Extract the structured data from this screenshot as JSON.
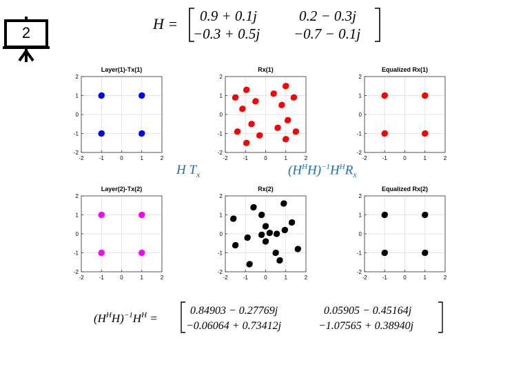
{
  "slide": {
    "number": "2"
  },
  "equations": {
    "H": {
      "lhs": "H =",
      "r1c1": "0.9 + 0.1j",
      "r1c2": "0.2 − 0.3j",
      "r2c1": "−0.3 + 0.5j",
      "r2c2": "−0.7 − 0.1j"
    },
    "inv": {
      "lhs": "(H",
      "lhs_sup1": "H",
      "lhs_mid": "H)",
      "lhs_sup2": "−1",
      "lhs_end": "H",
      "lhs_sup3": "H",
      "lhs_eq": " =",
      "r1c1": "0.84903 − 0.27769j",
      "r1c2": "0.05905 − 0.45164j",
      "r2c1": "−0.06064 + 0.73412j",
      "r2c2": "−1.07565 + 0.38940j"
    },
    "htx": {
      "h": "H T",
      "sub": "x"
    },
    "hinv": {
      "a": "(H",
      "s1": "H",
      "b": "H)",
      "s2": "−1",
      "c": "H",
      "s3": "H",
      "d": "R",
      "sub": "x"
    }
  },
  "chart_data": [
    {
      "type": "scatter",
      "title": "Layer(1)-Tx(1)",
      "xlim": [
        -2,
        2
      ],
      "ylim": [
        -2,
        2
      ],
      "xticks": [
        -2,
        -1,
        0,
        1,
        2
      ],
      "yticks": [
        -2,
        -1,
        0,
        1,
        2
      ],
      "grid": true,
      "color": "#0000ff",
      "points": [
        [
          -1,
          1
        ],
        [
          1,
          1
        ],
        [
          -1,
          -1
        ],
        [
          1,
          -1
        ]
      ]
    },
    {
      "type": "scatter",
      "title": "Rx(1)",
      "xlim": [
        -2,
        2
      ],
      "ylim": [
        -2,
        2
      ],
      "xticks": [
        -2,
        -1,
        0,
        1,
        2
      ],
      "yticks": [
        -2,
        -1,
        0,
        1,
        2
      ],
      "grid": true,
      "color": "#ff0000",
      "points": [
        [
          -1.5,
          0.9
        ],
        [
          -0.95,
          1.3
        ],
        [
          -1.15,
          0.3
        ],
        [
          -0.5,
          0.7
        ],
        [
          0.4,
          1.1
        ],
        [
          1.0,
          1.5
        ],
        [
          0.8,
          0.5
        ],
        [
          1.4,
          0.9
        ],
        [
          -1.4,
          -0.9
        ],
        [
          -0.7,
          -0.5
        ],
        [
          -0.3,
          -1.1
        ],
        [
          -0.95,
          -1.5
        ],
        [
          0.6,
          -0.7
        ],
        [
          1.0,
          -1.3
        ],
        [
          1.1,
          -0.3
        ],
        [
          1.5,
          -0.9
        ]
      ]
    },
    {
      "type": "scatter",
      "title": "Equalized Rx(1)",
      "xlim": [
        -2,
        2
      ],
      "ylim": [
        -2,
        2
      ],
      "xticks": [
        -2,
        -1,
        0,
        1,
        2
      ],
      "yticks": [
        -2,
        -1,
        0,
        1,
        2
      ],
      "grid": true,
      "color": "#ff0000",
      "points": [
        [
          -1,
          1
        ],
        [
          1,
          1
        ],
        [
          -1,
          -1
        ],
        [
          1,
          -1
        ]
      ]
    },
    {
      "type": "scatter",
      "title": "Layer(2)-Tx(2)",
      "xlim": [
        -2,
        2
      ],
      "ylim": [
        -2,
        2
      ],
      "xticks": [
        -2,
        -1,
        0,
        1,
        2
      ],
      "yticks": [
        -2,
        -1,
        0,
        1,
        2
      ],
      "grid": true,
      "color": "#ff00ff",
      "points": [
        [
          -1,
          1
        ],
        [
          1,
          1
        ],
        [
          -1,
          -1
        ],
        [
          1,
          -1
        ]
      ]
    },
    {
      "type": "scatter",
      "title": "Rx(2)",
      "xlim": [
        -2,
        2
      ],
      "ylim": [
        -2,
        2
      ],
      "xticks": [
        -2,
        -1,
        0,
        1,
        2
      ],
      "yticks": [
        -2,
        -1,
        0,
        1,
        2
      ],
      "grid": true,
      "color": "#000000",
      "points": [
        [
          -0.6,
          1.4
        ],
        [
          0.9,
          1.6
        ],
        [
          -0.2,
          1.0
        ],
        [
          1.3,
          0.6
        ],
        [
          -1.6,
          0.8
        ],
        [
          0.0,
          0.4
        ],
        [
          0.2,
          0.05
        ],
        [
          0.95,
          0.2
        ],
        [
          -0.2,
          -0.05
        ],
        [
          -0.9,
          -0.2
        ],
        [
          0.0,
          -0.4
        ],
        [
          -1.5,
          -0.6
        ],
        [
          0.55,
          0.0
        ],
        [
          0.5,
          -1.0
        ],
        [
          1.6,
          -0.8
        ],
        [
          -0.8,
          -1.6
        ],
        [
          0.7,
          -1.4
        ]
      ]
    },
    {
      "type": "scatter",
      "title": "Equalized Rx(2)",
      "xlim": [
        -2,
        2
      ],
      "ylim": [
        -2,
        2
      ],
      "xticks": [
        -2,
        -1,
        0,
        1,
        2
      ],
      "yticks": [
        -2,
        -1,
        0,
        1,
        2
      ],
      "grid": true,
      "color": "#000000",
      "points": [
        [
          -1,
          1
        ],
        [
          1,
          1
        ],
        [
          -1,
          -1
        ],
        [
          1,
          -1
        ]
      ]
    }
  ]
}
